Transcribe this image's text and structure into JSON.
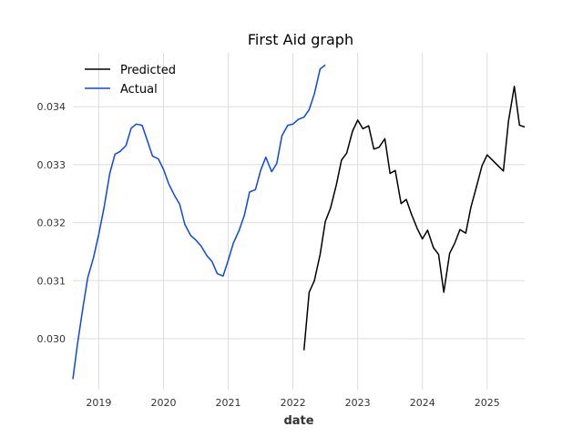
{
  "chart_data": {
    "type": "line",
    "title": "First Aid graph",
    "xlabel": "date",
    "ylabel": "",
    "grid": true,
    "legend_position": "top-left",
    "xlim": [
      2018.6,
      2025.58
    ],
    "ylim": [
      0.02912,
      0.03493
    ],
    "x_ticks": [
      2019,
      2020,
      2021,
      2022,
      2023,
      2024,
      2025
    ],
    "x_tick_labels": [
      "2019",
      "2020",
      "2021",
      "2022",
      "2023",
      "2024",
      "2025"
    ],
    "y_ticks": [
      0.03,
      0.031,
      0.032,
      0.033,
      0.034
    ],
    "y_tick_labels": [
      "0.030",
      "0.031",
      "0.032",
      "0.033",
      "0.034"
    ],
    "series": [
      {
        "name": "Predicted",
        "color": "#000000",
        "x": [
          2022.17,
          2022.25,
          2022.33,
          2022.42,
          2022.5,
          2022.58,
          2022.67,
          2022.75,
          2022.83,
          2022.92,
          2023.0,
          2023.08,
          2023.17,
          2023.25,
          2023.33,
          2023.42,
          2023.5,
          2023.58,
          2023.67,
          2023.75,
          2023.83,
          2023.92,
          2024.0,
          2024.08,
          2024.17,
          2024.25,
          2024.33,
          2024.42,
          2024.5,
          2024.58,
          2024.67,
          2024.75,
          2024.83,
          2024.92,
          2025.0,
          2025.08,
          2025.17,
          2025.25,
          2025.33,
          2025.42,
          2025.5,
          2025.58
        ],
        "y": [
          0.0298,
          0.0308,
          0.031,
          0.03145,
          0.03202,
          0.03225,
          0.03265,
          0.03308,
          0.0332,
          0.03358,
          0.03377,
          0.03362,
          0.03367,
          0.03327,
          0.0333,
          0.03345,
          0.03285,
          0.0329,
          0.03233,
          0.0324,
          0.03215,
          0.0319,
          0.03172,
          0.03187,
          0.03157,
          0.03145,
          0.0308,
          0.03147,
          0.03165,
          0.03188,
          0.03182,
          0.03227,
          0.0326,
          0.03298,
          0.03317,
          0.03308,
          0.03298,
          0.03289,
          0.03375,
          0.03435,
          0.03368,
          0.03365
        ]
      },
      {
        "name": "Actual",
        "color": "#0b46ef",
        "x": [
          2018.6,
          2018.67,
          2018.75,
          2018.83,
          2018.92,
          2019.0,
          2019.08,
          2019.17,
          2019.25,
          2019.33,
          2019.42,
          2019.5,
          2019.58,
          2019.67,
          2019.75,
          2019.83,
          2019.92,
          2020.0,
          2020.08,
          2020.17,
          2020.25,
          2020.33,
          2020.42,
          2020.5,
          2020.58,
          2020.67,
          2020.75,
          2020.83,
          2020.92,
          2021.0,
          2021.08,
          2021.17,
          2021.25,
          2021.33,
          2021.42,
          2021.5,
          2021.58,
          2021.67,
          2021.75,
          2021.83,
          2021.92,
          2022.0,
          2022.08,
          2022.17,
          2022.25,
          2022.33,
          2022.42,
          2022.5
        ],
        "y": [
          0.0293,
          0.0299,
          0.0305,
          0.03105,
          0.0314,
          0.0318,
          0.03225,
          0.03285,
          0.03318,
          0.03323,
          0.03333,
          0.03363,
          0.0337,
          0.03368,
          0.03342,
          0.03315,
          0.0331,
          0.03292,
          0.03267,
          0.03247,
          0.03232,
          0.03197,
          0.03178,
          0.0317,
          0.0316,
          0.03143,
          0.03133,
          0.03112,
          0.03108,
          0.03135,
          0.03165,
          0.03187,
          0.03213,
          0.03253,
          0.03257,
          0.0329,
          0.03313,
          0.03288,
          0.03302,
          0.0335,
          0.03368,
          0.0337,
          0.03378,
          0.03382,
          0.03395,
          0.03422,
          0.03465,
          0.03472
        ]
      }
    ]
  }
}
